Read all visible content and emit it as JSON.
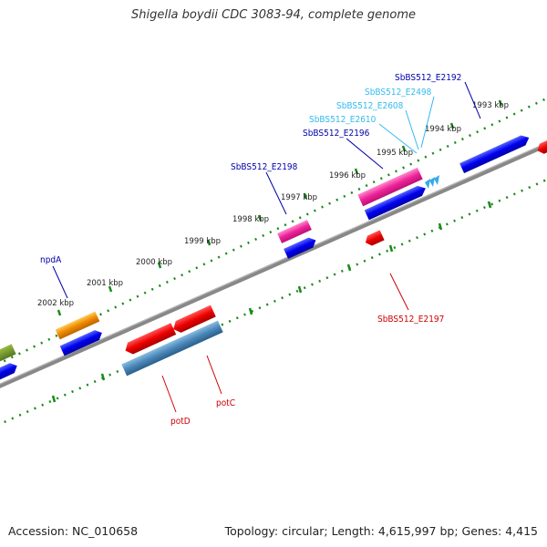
{
  "title": "Shigella boydii CDC 3083-94, complete genome",
  "footer": {
    "accession": "Accession: NC_010658",
    "summary": "Topology: circular; Length: 4,615,997 bp; Genes: 4,415"
  },
  "scale_labels": [
    "2002 kbp",
    "2001 kbp",
    "2000 kbp",
    "1999 kbp",
    "1998 kbp",
    "1997 kbp",
    "1996 kbp",
    "1995 kbp",
    "1994 kbp",
    "1993 kbp"
  ],
  "gene_labels": [
    {
      "text": "SbBS512_E2192",
      "color": "#0000aa"
    },
    {
      "text": "SbBS512_E2498",
      "color": "#33bbee"
    },
    {
      "text": "SbBS512_E2608",
      "color": "#33bbee"
    },
    {
      "text": "SbBS512_E2610",
      "color": "#33bbee"
    },
    {
      "text": "SbBS512_E2196",
      "color": "#0000aa"
    },
    {
      "text": "SbBS512_E2198",
      "color": "#0000aa"
    },
    {
      "text": "npdA",
      "color": "#0000aa"
    },
    {
      "text": "SbBS512_E2197",
      "color": "#cc0000"
    },
    {
      "text": "potC",
      "color": "#cc0000"
    },
    {
      "text": "potD",
      "color": "#cc0000"
    }
  ]
}
